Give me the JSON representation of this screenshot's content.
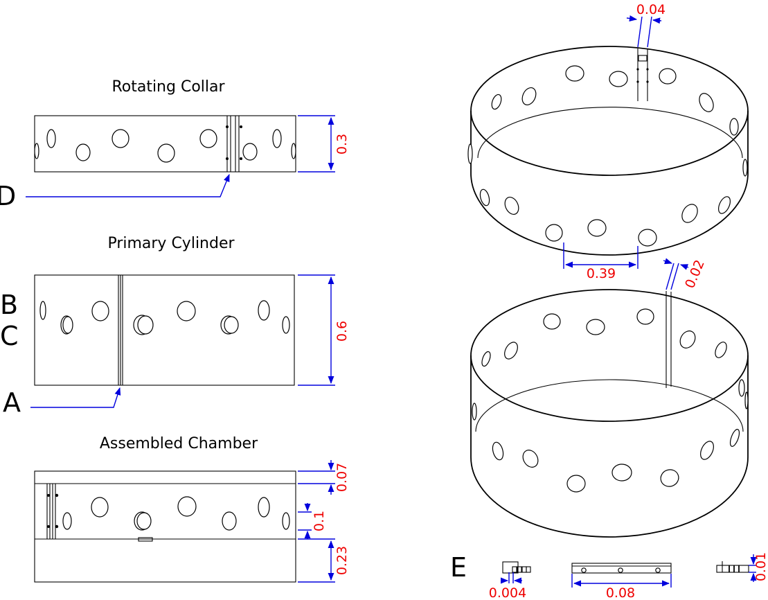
{
  "titles": {
    "collar": "Rotating Collar",
    "cylinder": "Primary Cylinder",
    "assembled": "Assembled Chamber"
  },
  "callouts": {
    "a": "A",
    "b": "B",
    "c": "C",
    "d": "D",
    "e": "E"
  },
  "dimensions": {
    "collar_height": "0.3",
    "cylinder_height": "0.6",
    "assembled_top": "0.07",
    "assembled_window": "0.1",
    "assembled_bottom": "0.23",
    "gap_top": "0.04",
    "hole_spacing": "0.39",
    "gap_lower": "0.02",
    "hinge_small": "0.004",
    "hinge_length": "0.08",
    "hinge_thickness": "0.01"
  },
  "colors": {
    "dimension_line": "#0000dd",
    "dimension_text": "#ee0000",
    "outline": "#000000"
  }
}
